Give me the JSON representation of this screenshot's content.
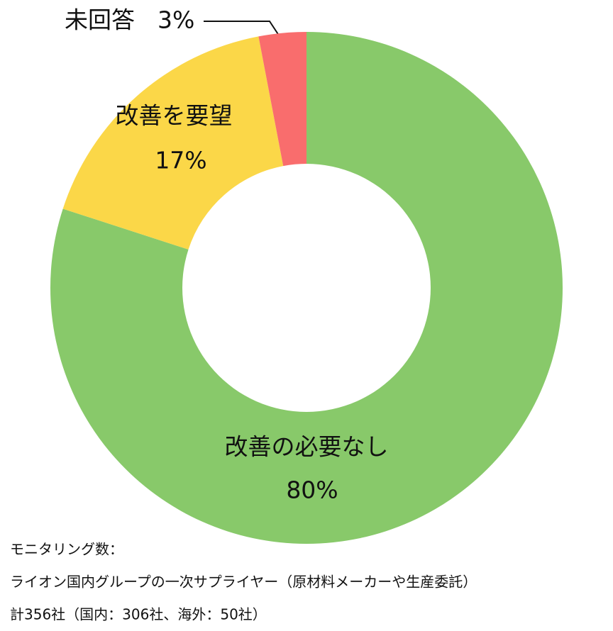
{
  "chart_data": {
    "type": "donut",
    "categories": [
      "改善の必要なし",
      "改善を要望",
      "未回答"
    ],
    "values": [
      80,
      17,
      3
    ],
    "value_labels": [
      "80%",
      "17%",
      "3%"
    ],
    "colors": [
      "#88c96a",
      "#fbd748",
      "#f96d6d"
    ],
    "footnote": [
      "モニタリング数：",
      "ライオン国内グループの一次サプライヤー（原材料メーカーや生産委託）",
      "計356社（国内：306社、海外：50社）"
    ]
  }
}
